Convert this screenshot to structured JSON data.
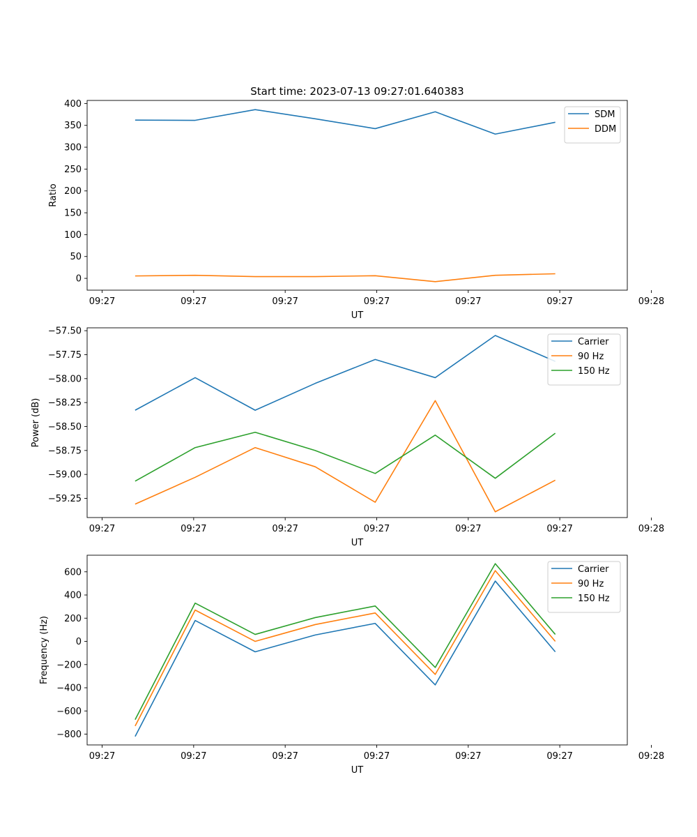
{
  "figure_title": "Start time: 2023-07-13 09:27:01.640383",
  "chart_data": [
    {
      "type": "line",
      "title": "Start time: 2023-07-13 09:27:01.640383",
      "xlabel": "UT",
      "ylabel": "Ratio",
      "x": [
        1,
        2,
        3,
        4,
        5,
        6,
        7,
        8
      ],
      "xlim": [
        0.2,
        9.2
      ],
      "xticks": [
        0.45,
        1.975,
        3.5,
        5.025,
        6.55,
        8.075,
        9.6
      ],
      "xtick_labels": [
        "09:27",
        "09:27",
        "09:27",
        "09:27",
        "09:27",
        "09:27",
        "09:28"
      ],
      "ylim": [
        -27,
        407
      ],
      "yticks": [
        0,
        50,
        100,
        150,
        200,
        250,
        300,
        350,
        400
      ],
      "ytick_labels": [
        "0",
        "50",
        "100",
        "150",
        "200",
        "250",
        "300",
        "350",
        "400"
      ],
      "legend_position": "top-right",
      "series": [
        {
          "name": "SDM",
          "color": "#1f77b4",
          "values": [
            362,
            361.5,
            386,
            365,
            342.5,
            381,
            330,
            357
          ]
        },
        {
          "name": "DDM",
          "color": "#ff7f0e",
          "values": [
            5.5,
            7,
            4,
            4,
            6,
            -7.5,
            7,
            10.5
          ]
        }
      ]
    },
    {
      "type": "line",
      "title": "",
      "xlabel": "UT",
      "ylabel": "Power (dB)",
      "x": [
        1,
        2,
        3,
        4,
        5,
        6,
        7,
        8
      ],
      "xlim": [
        0.2,
        9.2
      ],
      "xticks": [
        0.45,
        1.975,
        3.5,
        5.025,
        6.55,
        8.075,
        9.6
      ],
      "xtick_labels": [
        "09:27",
        "09:27",
        "09:27",
        "09:27",
        "09:27",
        "09:27",
        "09:28"
      ],
      "ylim": [
        -59.45,
        -57.47
      ],
      "yticks": [
        -59.25,
        -59.0,
        -58.75,
        -58.5,
        -58.25,
        -58.0,
        -57.75,
        -57.5
      ],
      "ytick_labels": [
        "−59.25",
        "−59.00",
        "−58.75",
        "−58.50",
        "−58.25",
        "−58.00",
        "−57.75",
        "−57.50"
      ],
      "legend_position": "top-right",
      "series": [
        {
          "name": "Carrier",
          "color": "#1f77b4",
          "values": [
            -58.33,
            -57.99,
            -58.33,
            -58.05,
            -57.8,
            -57.99,
            -57.55,
            -57.82
          ]
        },
        {
          "name": "90 Hz",
          "color": "#ff7f0e",
          "values": [
            -59.31,
            -59.03,
            -58.72,
            -58.92,
            -59.29,
            -58.23,
            -59.39,
            -59.06
          ]
        },
        {
          "name": "150 Hz",
          "color": "#2ca02c",
          "values": [
            -59.07,
            -58.72,
            -58.56,
            -58.75,
            -58.99,
            -58.59,
            -59.04,
            -58.57
          ]
        }
      ]
    },
    {
      "type": "line",
      "title": "",
      "xlabel": "UT",
      "ylabel": "Frequency (Hz)",
      "x": [
        1,
        2,
        3,
        4,
        5,
        6,
        7,
        8
      ],
      "xlim": [
        0.2,
        9.2
      ],
      "xticks": [
        0.45,
        1.975,
        3.5,
        5.025,
        6.55,
        8.075,
        9.6
      ],
      "xtick_labels": [
        "09:27",
        "09:27",
        "09:27",
        "09:27",
        "09:27",
        "09:27",
        "09:28"
      ],
      "ylim": [
        -893,
        743
      ],
      "yticks": [
        -800,
        -600,
        -400,
        -200,
        0,
        200,
        400,
        600
      ],
      "ytick_labels": [
        "−800",
        "−600",
        "−400",
        "−200",
        "0",
        "200",
        "400",
        "600"
      ],
      "legend_position": "top-right",
      "series": [
        {
          "name": "Carrier",
          "color": "#1f77b4",
          "values": [
            -820,
            180,
            -90,
            55,
            155,
            -375,
            520,
            -90
          ]
        },
        {
          "name": "90 Hz",
          "color": "#ff7f0e",
          "values": [
            -730,
            270,
            0,
            145,
            245,
            -285,
            610,
            0
          ]
        },
        {
          "name": "150 Hz",
          "color": "#2ca02c",
          "values": [
            -675,
            330,
            60,
            205,
            305,
            -225,
            670,
            60
          ]
        }
      ]
    }
  ]
}
